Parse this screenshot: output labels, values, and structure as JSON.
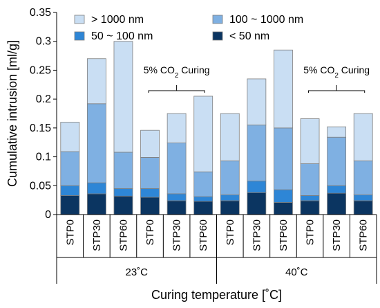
{
  "chart_data": {
    "type": "bar",
    "stacked": true,
    "ylabel": "Cumulative intrusion [ml/g]",
    "xlabel": "Curing temperature [˚C]",
    "ylim": [
      0,
      0.35
    ],
    "yticks": [
      0,
      0.05,
      0.1,
      0.15,
      0.2,
      0.25,
      0.3,
      0.35
    ],
    "ytick_labels": [
      "0",
      "0.05",
      "0.1",
      "0.15",
      "0.2",
      "0.25",
      "0.3",
      "0.35"
    ],
    "categories": [
      "STP0",
      "STP30",
      "STP60",
      "STP0",
      "STP30",
      "STP60",
      "STP0",
      "STP30",
      "STP60",
      "STP0",
      "STP30",
      "STP60"
    ],
    "groups": [
      {
        "label": "23˚C",
        "start": 0,
        "end": 5
      },
      {
        "label": "40˚C",
        "start": 6,
        "end": 11
      }
    ],
    "annotations": [
      {
        "text_prefix": "5% CO",
        "text_sub": "2",
        "text_suffix": " Curing",
        "start": 3,
        "end": 5
      },
      {
        "text_prefix": "5% CO",
        "text_sub": "2",
        "text_suffix": " Curing",
        "start": 9,
        "end": 11
      }
    ],
    "series": [
      {
        "name": "< 50 nm",
        "color": "#0b3561",
        "values": [
          0.033,
          0.036,
          0.032,
          0.03,
          0.024,
          0.023,
          0.024,
          0.038,
          0.021,
          0.024,
          0.037,
          0.024
        ]
      },
      {
        "name": "50 ~ 100 nm",
        "color": "#2e86d6",
        "values": [
          0.017,
          0.019,
          0.013,
          0.015,
          0.012,
          0.008,
          0.01,
          0.02,
          0.022,
          0.009,
          0.013,
          0.01
        ]
      },
      {
        "name": "100 ~ 1000 nm",
        "color": "#7fb0e2",
        "values": [
          0.059,
          0.137,
          0.063,
          0.054,
          0.088,
          0.043,
          0.059,
          0.097,
          0.107,
          0.055,
          0.084,
          0.059
        ]
      },
      {
        "name": "> 1000 nm",
        "color": "#c9def3",
        "values": [
          0.051,
          0.078,
          0.192,
          0.047,
          0.051,
          0.131,
          0.082,
          0.08,
          0.135,
          0.078,
          0.018,
          0.082
        ]
      }
    ],
    "legend": {
      "placement": "top",
      "order": [
        "> 1000 nm",
        "100 ~ 1000 nm",
        "50 ~ 100 nm",
        "< 50 nm"
      ]
    },
    "grid": false
  }
}
